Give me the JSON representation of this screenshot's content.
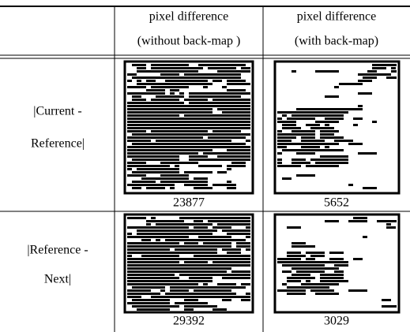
{
  "table": {
    "header": [
      [
        "pixel difference",
        "(without back-map )"
      ],
      [
        "pixel difference",
        "(with back-map)"
      ]
    ],
    "rows": [
      {
        "label": [
          "|Current -",
          "Reference|"
        ],
        "values": [
          23877,
          5652
        ]
      },
      {
        "label": [
          "|Reference -",
          "Next|"
        ],
        "values": [
          29392,
          3029
        ]
      }
    ]
  }
}
